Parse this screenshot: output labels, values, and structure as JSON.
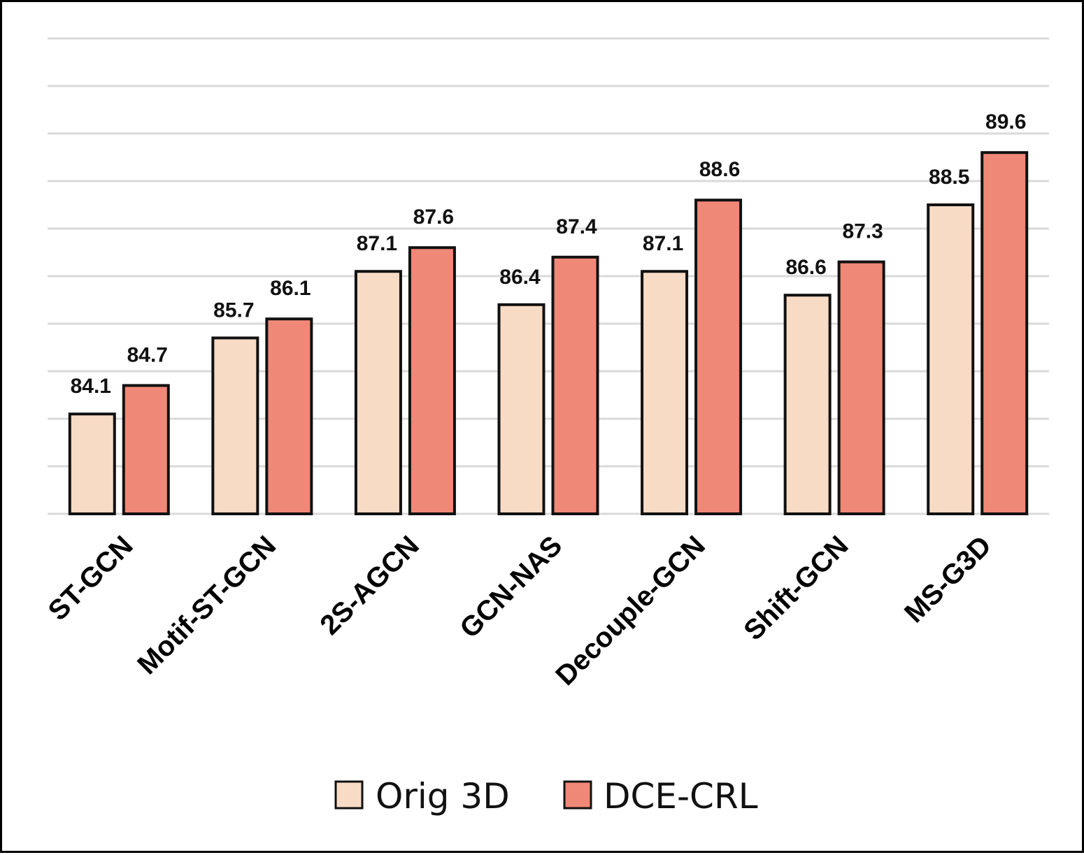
{
  "chart_data": {
    "type": "bar",
    "title": "",
    "xlabel": "",
    "ylabel": "",
    "ylim": [
      82,
      92
    ],
    "grid": true,
    "legend_position": "bottom",
    "categories": [
      "ST-GCN",
      "Motif-ST-GCN",
      "2S-AGCN",
      "GCN-NAS",
      "Decouple-GCN",
      "Shift-GCN",
      "MS-G3D"
    ],
    "series": [
      {
        "name": "Orig 3D",
        "color": "#f8dbc5",
        "values": [
          84.1,
          85.7,
          87.1,
          86.4,
          87.1,
          86.6,
          88.5
        ],
        "labels": [
          "84.1",
          "85.7",
          "87.1",
          "86.4",
          "87.1",
          "86.6",
          "88.5"
        ]
      },
      {
        "name": "DCE-CRL",
        "color": "#f08878",
        "values": [
          84.7,
          86.1,
          87.6,
          87.4,
          88.6,
          87.3,
          89.6
        ],
        "labels": [
          "84.7",
          "86.1",
          "87.6",
          "87.4",
          "88.6",
          "87.3",
          "89.6"
        ]
      }
    ]
  }
}
